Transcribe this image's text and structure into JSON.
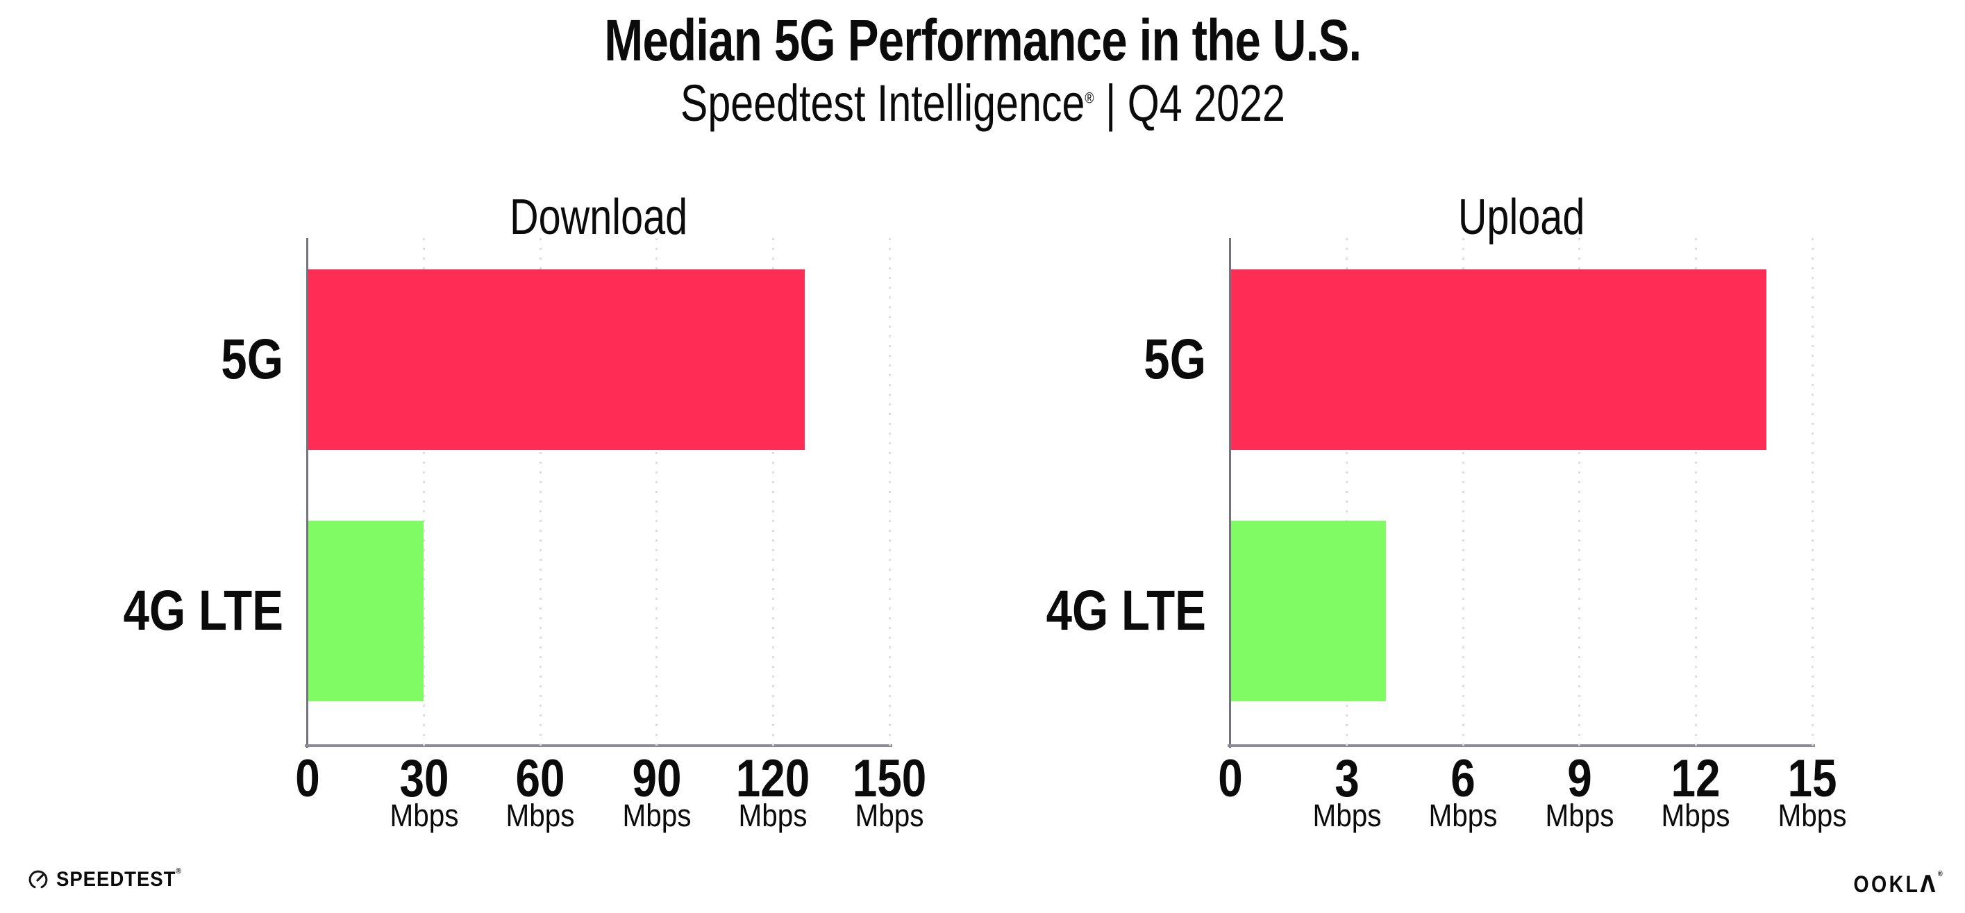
{
  "header": {
    "title": "Median 5G Performance in the U.S.",
    "subtitle_brand": "Speedtest Intelligence",
    "registered_mark": "®",
    "subtitle_rest": " | Q4 2022"
  },
  "chart_data": [
    {
      "type": "bar",
      "orientation": "horizontal",
      "title": "Download",
      "categories": [
        "5G",
        "4G LTE"
      ],
      "values": [
        128,
        29.8
      ],
      "value_unit": "Mbps",
      "xlim": [
        0,
        150
      ],
      "xticks": [
        {
          "value": 0,
          "label": "0",
          "unit": ""
        },
        {
          "value": 30,
          "label": "30",
          "unit": "Mbps"
        },
        {
          "value": 60,
          "label": "60",
          "unit": "Mbps"
        },
        {
          "value": 90,
          "label": "90",
          "unit": "Mbps"
        },
        {
          "value": 120,
          "label": "120",
          "unit": "Mbps"
        },
        {
          "value": 150,
          "label": "150",
          "unit": "Mbps"
        }
      ],
      "bar_colors": [
        "#ff2d56",
        "#80fb64"
      ],
      "grid": "vertical-dotted",
      "legend": "none"
    },
    {
      "type": "bar",
      "orientation": "horizontal",
      "title": "Upload",
      "categories": [
        "5G",
        "4G LTE"
      ],
      "values": [
        13.8,
        4
      ],
      "value_unit": "Mbps",
      "xlim": [
        0,
        15
      ],
      "xticks": [
        {
          "value": 0,
          "label": "0",
          "unit": ""
        },
        {
          "value": 3,
          "label": "3",
          "unit": "Mbps"
        },
        {
          "value": 6,
          "label": "6",
          "unit": "Mbps"
        },
        {
          "value": 9,
          "label": "9",
          "unit": "Mbps"
        },
        {
          "value": 12,
          "label": "12",
          "unit": "Mbps"
        },
        {
          "value": 15,
          "label": "15",
          "unit": "Mbps"
        }
      ],
      "bar_colors": [
        "#ff2d56",
        "#80fb64"
      ],
      "grid": "vertical-dotted",
      "legend": "none"
    }
  ],
  "footer": {
    "speedtest_label": "SPEEDTEST",
    "speedtest_mark": "®",
    "ookla_label": "OOKL",
    "ookla_label_last": "Λ",
    "ookla_mark": "®"
  },
  "colors": {
    "bar_5g": "#ff2d56",
    "bar_4g_lte": "#80fb64",
    "gridline": "#dcdce6",
    "axis_x": "#8b8b95",
    "axis_y": "#73737f",
    "text": "#0b0b0b"
  }
}
